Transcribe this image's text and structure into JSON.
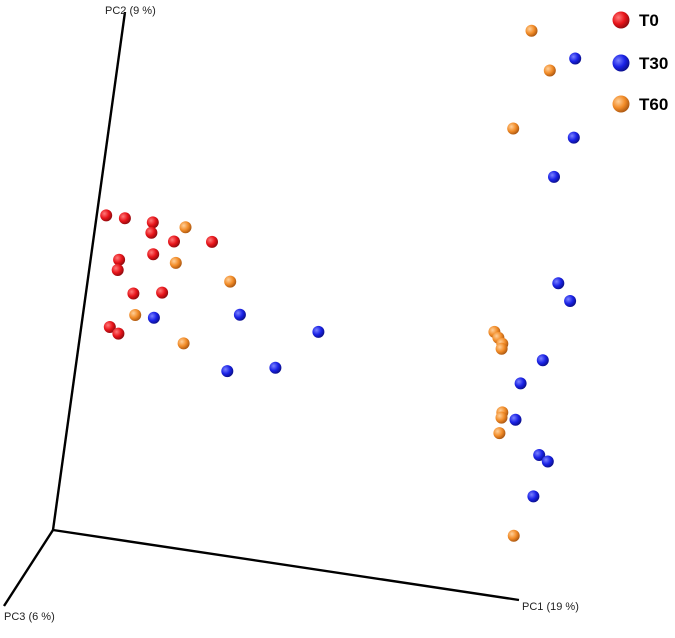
{
  "chart_data": {
    "type": "scatter",
    "projection": "3d-pca",
    "axes": {
      "pc1": {
        "label": "PC1 (19 %)"
      },
      "pc2": {
        "label": "PC2 (9 %)"
      },
      "pc3": {
        "label": "PC3 (6 %)"
      }
    },
    "legend_position": "top-right",
    "series": [
      {
        "name": "T0",
        "color": "#e8141a",
        "points": [
          [
            0.02,
            0.61
          ],
          [
            0.06,
            0.61
          ],
          [
            0.12,
            0.61
          ],
          [
            0.12,
            0.59
          ],
          [
            0.17,
            0.58
          ],
          [
            0.25,
            0.59
          ],
          [
            0.13,
            0.55
          ],
          [
            0.06,
            0.53
          ],
          [
            0.06,
            0.51
          ],
          [
            0.1,
            0.47
          ],
          [
            0.16,
            0.48
          ],
          [
            0.06,
            0.4
          ],
          [
            0.08,
            0.39
          ]
        ]
      },
      {
        "name": "T30",
        "color": "#1a22e6",
        "points": [
          [
            0.96,
            1.04
          ],
          [
            0.98,
            0.89
          ],
          [
            0.95,
            0.81
          ],
          [
            0.99,
            0.61
          ],
          [
            1.02,
            0.58
          ],
          [
            0.98,
            0.46
          ],
          [
            0.94,
            0.41
          ],
          [
            0.94,
            0.34
          ],
          [
            1.0,
            0.28
          ],
          [
            1.02,
            0.27
          ],
          [
            1.0,
            0.2
          ],
          [
            0.15,
            0.43
          ],
          [
            0.33,
            0.46
          ],
          [
            0.5,
            0.45
          ],
          [
            0.32,
            0.35
          ],
          [
            0.42,
            0.37
          ]
        ]
      },
      {
        "name": "T60",
        "color": "#f28c28",
        "points": [
          [
            0.86,
            1.08
          ],
          [
            0.91,
            1.01
          ],
          [
            0.85,
            0.89
          ],
          [
            0.19,
            0.61
          ],
          [
            0.18,
            0.54
          ],
          [
            0.3,
            0.52
          ],
          [
            0.11,
            0.43
          ],
          [
            0.22,
            0.39
          ],
          [
            0.87,
            0.5
          ],
          [
            0.88,
            0.49
          ],
          [
            0.89,
            0.48
          ],
          [
            0.89,
            0.47
          ],
          [
            0.91,
            0.35
          ],
          [
            0.91,
            0.34
          ],
          [
            0.91,
            0.31
          ],
          [
            0.97,
            0.12
          ]
        ]
      }
    ]
  }
}
